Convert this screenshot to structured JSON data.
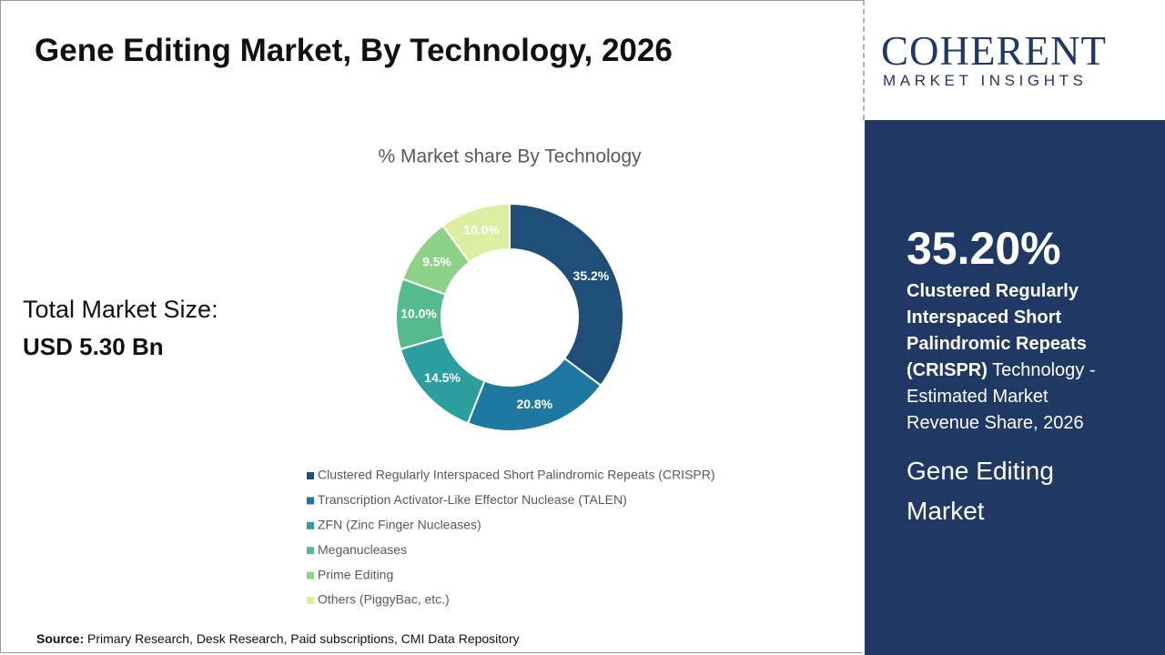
{
  "header": {
    "title": "Gene Editing Market, By Technology, 2026"
  },
  "market_size": {
    "label": "Total Market Size:",
    "value": "USD 5.30 Bn"
  },
  "logo": {
    "name": "COHERENT",
    "tagline": "MARKET INSIGHTS"
  },
  "side_panel": {
    "share": "35.20%",
    "highlight": "Clustered Regularly Interspaced Short Palindromic Repeats (CRISPR)",
    "description": " Technology - Estimated Market Revenue Share, 2026",
    "market": "Gene Editing Market"
  },
  "source": {
    "label": "Source:",
    "text": " Primary Research, Desk Research, Paid subscriptions, CMI Data Repository"
  },
  "chart_data": {
    "type": "donut",
    "title": "% Market share By Technology",
    "categories": [
      "Clustered Regularly Interspaced Short Palindromic Repeats (CRISPR)",
      "Transcription Activator-Like Effector Nuclease (TALEN)",
      "ZFN (Zinc Finger Nucleases)",
      "Meganucleases",
      "Prime Editing",
      "Others (PiggyBac, etc.)"
    ],
    "values": [
      35.2,
      20.8,
      14.5,
      10.0,
      9.5,
      10.0
    ],
    "value_labels": [
      "35.2%",
      "20.8%",
      "14.5%",
      "10.0%",
      "9.5%",
      "10.0%"
    ],
    "colors": [
      "#1f4e79",
      "#1f78a0",
      "#2d9e9e",
      "#55bb8e",
      "#8ed188",
      "#dcefa0"
    ]
  }
}
